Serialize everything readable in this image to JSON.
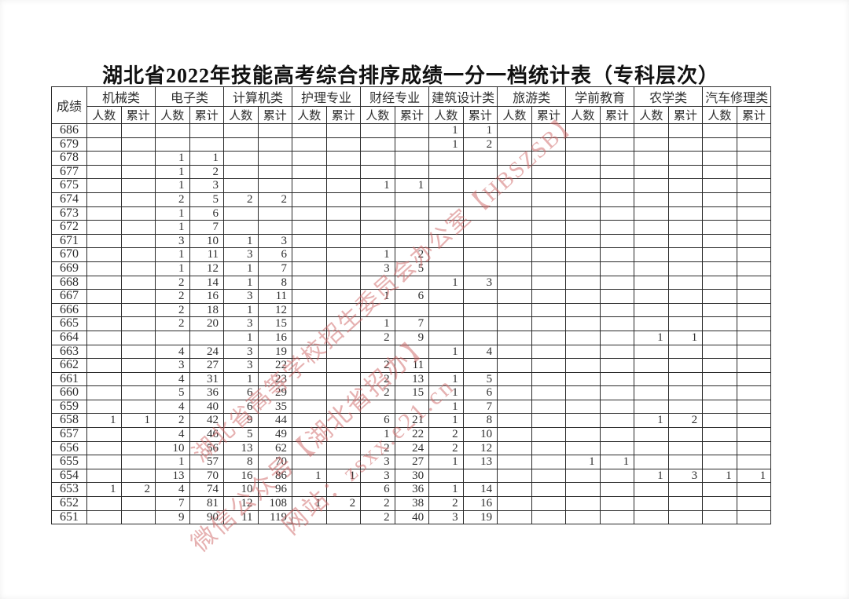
{
  "title": "湖北省2022年技能高考综合排序成绩一分一档统计表（专科层次）",
  "table": {
    "score_header": "成绩",
    "categories": [
      "机械类",
      "电子类",
      "计算机类",
      "护理专业",
      "财经专业",
      "建筑设计类",
      "旅游类",
      "学前教育",
      "农学类",
      "汽车修理类"
    ],
    "sub_headers": [
      "人数",
      "累计"
    ],
    "rows": [
      {
        "score": "686",
        "cells": [
          "",
          "",
          "",
          "",
          "",
          "",
          "",
          "",
          "",
          "",
          "1",
          "1",
          "",
          "",
          "",
          "",
          "",
          "",
          "",
          ""
        ]
      },
      {
        "score": "679",
        "cells": [
          "",
          "",
          "",
          "",
          "",
          "",
          "",
          "",
          "",
          "",
          "1",
          "2",
          "",
          "",
          "",
          "",
          "",
          "",
          "",
          ""
        ]
      },
      {
        "score": "678",
        "cells": [
          "",
          "",
          "1",
          "1",
          "",
          "",
          "",
          "",
          "",
          "",
          "",
          "",
          "",
          "",
          "",
          "",
          "",
          "",
          "",
          ""
        ]
      },
      {
        "score": "677",
        "cells": [
          "",
          "",
          "1",
          "2",
          "",
          "",
          "",
          "",
          "",
          "",
          "",
          "",
          "",
          "",
          "",
          "",
          "",
          "",
          "",
          ""
        ]
      },
      {
        "score": "675",
        "cells": [
          "",
          "",
          "1",
          "3",
          "",
          "",
          "",
          "",
          "1",
          "1",
          "",
          "",
          "",
          "",
          "",
          "",
          "",
          "",
          "",
          ""
        ]
      },
      {
        "score": "674",
        "cells": [
          "",
          "",
          "2",
          "5",
          "2",
          "2",
          "",
          "",
          "",
          "",
          "",
          "",
          "",
          "",
          "",
          "",
          "",
          "",
          "",
          ""
        ]
      },
      {
        "score": "673",
        "cells": [
          "",
          "",
          "1",
          "6",
          "",
          "",
          "",
          "",
          "",
          "",
          "",
          "",
          "",
          "",
          "",
          "",
          "",
          "",
          "",
          ""
        ]
      },
      {
        "score": "672",
        "cells": [
          "",
          "",
          "1",
          "7",
          "",
          "",
          "",
          "",
          "",
          "",
          "",
          "",
          "",
          "",
          "",
          "",
          "",
          "",
          "",
          ""
        ]
      },
      {
        "score": "671",
        "cells": [
          "",
          "",
          "3",
          "10",
          "1",
          "3",
          "",
          "",
          "",
          "",
          "",
          "",
          "",
          "",
          "",
          "",
          "",
          "",
          "",
          ""
        ]
      },
      {
        "score": "670",
        "cells": [
          "",
          "",
          "1",
          "11",
          "3",
          "6",
          "",
          "",
          "1",
          "2",
          "",
          "",
          "",
          "",
          "",
          "",
          "",
          "",
          "",
          ""
        ]
      },
      {
        "score": "669",
        "cells": [
          "",
          "",
          "1",
          "12",
          "1",
          "7",
          "",
          "",
          "3",
          "5",
          "",
          "",
          "",
          "",
          "",
          "",
          "",
          "",
          "",
          ""
        ]
      },
      {
        "score": "668",
        "cells": [
          "",
          "",
          "2",
          "14",
          "1",
          "8",
          "",
          "",
          "",
          "",
          "1",
          "3",
          "",
          "",
          "",
          "",
          "",
          "",
          "",
          ""
        ]
      },
      {
        "score": "667",
        "cells": [
          "",
          "",
          "2",
          "16",
          "3",
          "11",
          "",
          "",
          "1",
          "6",
          "",
          "",
          "",
          "",
          "",
          "",
          "",
          "",
          "",
          ""
        ]
      },
      {
        "score": "666",
        "cells": [
          "",
          "",
          "2",
          "18",
          "1",
          "12",
          "",
          "",
          "",
          "",
          "",
          "",
          "",
          "",
          "",
          "",
          "",
          "",
          "",
          ""
        ]
      },
      {
        "score": "665",
        "cells": [
          "",
          "",
          "2",
          "20",
          "3",
          "15",
          "",
          "",
          "1",
          "7",
          "",
          "",
          "",
          "",
          "",
          "",
          "",
          "",
          "",
          ""
        ]
      },
      {
        "score": "664",
        "cells": [
          "",
          "",
          "",
          "",
          "1",
          "16",
          "",
          "",
          "2",
          "9",
          "",
          "",
          "",
          "",
          "",
          "",
          "1",
          "1",
          "",
          ""
        ]
      },
      {
        "score": "663",
        "cells": [
          "",
          "",
          "4",
          "24",
          "3",
          "19",
          "",
          "",
          "",
          "",
          "1",
          "4",
          "",
          "",
          "",
          "",
          "",
          "",
          "",
          ""
        ]
      },
      {
        "score": "662",
        "cells": [
          "",
          "",
          "3",
          "27",
          "3",
          "22",
          "",
          "",
          "2",
          "11",
          "",
          "",
          "",
          "",
          "",
          "",
          "",
          "",
          "",
          ""
        ]
      },
      {
        "score": "661",
        "cells": [
          "",
          "",
          "4",
          "31",
          "1",
          "23",
          "",
          "",
          "2",
          "13",
          "1",
          "5",
          "",
          "",
          "",
          "",
          "",
          "",
          "",
          ""
        ]
      },
      {
        "score": "660",
        "cells": [
          "",
          "",
          "5",
          "36",
          "6",
          "29",
          "",
          "",
          "2",
          "15",
          "1",
          "6",
          "",
          "",
          "",
          "",
          "",
          "",
          "",
          ""
        ]
      },
      {
        "score": "659",
        "cells": [
          "",
          "",
          "4",
          "40",
          "6",
          "35",
          "",
          "",
          "",
          "",
          "1",
          "7",
          "",
          "",
          "",
          "",
          "",
          "",
          "",
          ""
        ]
      },
      {
        "score": "658",
        "cells": [
          "1",
          "1",
          "2",
          "42",
          "9",
          "44",
          "",
          "",
          "6",
          "21",
          "1",
          "8",
          "",
          "",
          "",
          "",
          "1",
          "2",
          "",
          ""
        ]
      },
      {
        "score": "657",
        "cells": [
          "",
          "",
          "4",
          "46",
          "5",
          "49",
          "",
          "",
          "1",
          "22",
          "2",
          "10",
          "",
          "",
          "",
          "",
          "",
          "",
          "",
          ""
        ]
      },
      {
        "score": "656",
        "cells": [
          "",
          "",
          "10",
          "56",
          "13",
          "62",
          "",
          "",
          "2",
          "24",
          "2",
          "12",
          "",
          "",
          "",
          "",
          "",
          "",
          "",
          ""
        ]
      },
      {
        "score": "655",
        "cells": [
          "",
          "",
          "1",
          "57",
          "8",
          "70",
          "",
          "",
          "3",
          "27",
          "1",
          "13",
          "",
          "",
          "1",
          "1",
          "",
          "",
          "",
          ""
        ]
      },
      {
        "score": "654",
        "cells": [
          "",
          "",
          "13",
          "70",
          "16",
          "86",
          "1",
          "1",
          "3",
          "30",
          "",
          "",
          "",
          "",
          "",
          "",
          "1",
          "3",
          "1",
          "1"
        ]
      },
      {
        "score": "653",
        "cells": [
          "1",
          "2",
          "4",
          "74",
          "10",
          "96",
          "",
          "",
          "6",
          "36",
          "1",
          "14",
          "",
          "",
          "",
          "",
          "",
          "",
          "",
          ""
        ]
      },
      {
        "score": "652",
        "cells": [
          "",
          "",
          "7",
          "81",
          "12",
          "108",
          "1",
          "2",
          "2",
          "38",
          "2",
          "16",
          "",
          "",
          "",
          "",
          "",
          "",
          "",
          ""
        ]
      },
      {
        "score": "651",
        "cells": [
          "",
          "",
          "9",
          "90",
          "11",
          "119",
          "",
          "",
          "2",
          "40",
          "3",
          "19",
          "",
          "",
          "",
          "",
          "",
          "",
          "",
          ""
        ]
      }
    ]
  },
  "watermark": {
    "lines": [
      "湖北省高等学校招生委员会办公室【HBSZSB】",
      "微信公众号【湖北省招办】",
      "网站：zsxx.e21.cn"
    ],
    "color_rgba": "rgba(205,100,100,0.5)"
  },
  "colors": {
    "background": "#ffffff",
    "border": "#2a2a2a",
    "text": "#2e2e2e",
    "title": "#111111"
  }
}
